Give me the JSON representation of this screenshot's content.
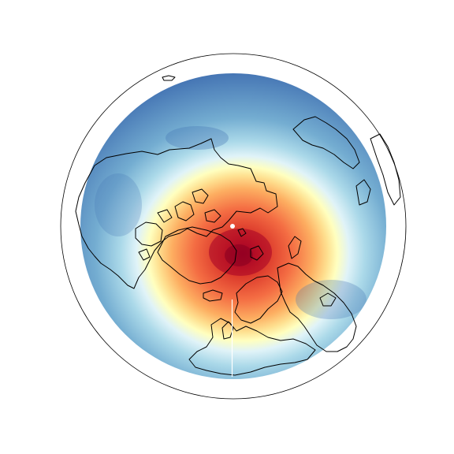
{
  "map": {
    "projection": "north-polar-stereographic",
    "features": [
      "globe-outline",
      "filled-contour-field",
      "coastlines",
      "pole-marker",
      "seam-line"
    ],
    "colormap": [
      "#a50026",
      "#d73027",
      "#f46d43",
      "#fdae61",
      "#fee090",
      "#ffffbf",
      "#e0f3f8",
      "#abd9e9",
      "#74add1",
      "#4575b4"
    ],
    "field_levels": 10,
    "colors": {
      "outline": "#000000",
      "coastline": "#000000",
      "pole_marker": "#ffffff",
      "seam": "#ffffff"
    }
  }
}
